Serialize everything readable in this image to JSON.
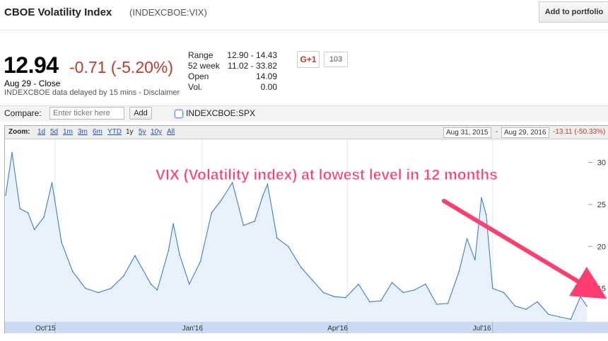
{
  "header": {
    "title": "CBOE Volatility Index",
    "ticker": "(INDEXCBOE:VIX)",
    "add_portfolio": "Add to portfolio"
  },
  "quote": {
    "price": "12.94",
    "change": "-0.71 (-5.20%)",
    "close_label": "Aug 29 - Close",
    "delay_note": "INDEXCBOE data delayed by 15 mins - Disclaimer",
    "stats": [
      {
        "label": "Range",
        "value": "12.90 - 14.43"
      },
      {
        "label": "52 week",
        "value": "11.02 - 33.82"
      },
      {
        "label": "Open",
        "value": "14.09"
      },
      {
        "label": "Vol.",
        "value": "0.00"
      }
    ]
  },
  "social": {
    "gplus": "G+1",
    "count": "103"
  },
  "compare": {
    "label": "Compare:",
    "placeholder": "Enter ticker here",
    "add": "Add",
    "spx_label": "INDEXCBOE:SPX"
  },
  "zoom": {
    "label": "Zoom:",
    "options": [
      "1d",
      "5d",
      "1m",
      "3m",
      "6m",
      "YTD",
      "1y",
      "5y",
      "10y",
      "All"
    ],
    "active": "1y",
    "start_date": "Aug 31, 2015",
    "end_date": "Aug 29, 2016",
    "separator": "-",
    "range_change": "-13.11 (-50.33%)"
  },
  "annotation": {
    "text": "VIX (Volatility index) at lowest level in 12 months",
    "color": "#ff3d71"
  },
  "colors": {
    "line": "#3a7fc9",
    "fill": "#e8f1fa",
    "negative": "#c0392b",
    "timeline": "#c9daf2"
  },
  "chart_data": {
    "type": "area",
    "title": "",
    "xlabel": "",
    "ylabel": "",
    "x": [
      "2015-08-31",
      "2015-09-04",
      "2015-09-09",
      "2015-09-14",
      "2015-09-18",
      "2015-09-24",
      "2015-09-29",
      "2015-10-05",
      "2015-10-12",
      "2015-10-20",
      "2015-10-28",
      "2015-11-05",
      "2015-11-13",
      "2015-11-20",
      "2015-11-30",
      "2015-12-04",
      "2015-12-11",
      "2015-12-14",
      "2015-12-18",
      "2015-12-24",
      "2015-12-31",
      "2016-01-07",
      "2016-01-13",
      "2016-01-20",
      "2016-01-27",
      "2016-02-03",
      "2016-02-08",
      "2016-02-11",
      "2016-02-17",
      "2016-02-24",
      "2016-03-03",
      "2016-03-10",
      "2016-03-17",
      "2016-03-24",
      "2016-03-31",
      "2016-04-08",
      "2016-04-15",
      "2016-04-22",
      "2016-04-29",
      "2016-05-06",
      "2016-05-13",
      "2016-05-20",
      "2016-05-27",
      "2016-06-03",
      "2016-06-10",
      "2016-06-15",
      "2016-06-20",
      "2016-06-24",
      "2016-06-27",
      "2016-07-01",
      "2016-07-08",
      "2016-07-15",
      "2016-07-22",
      "2016-07-29",
      "2016-08-05",
      "2016-08-12",
      "2016-08-19",
      "2016-08-25",
      "2016-08-29"
    ],
    "y": [
      26.1,
      31.2,
      24.5,
      24.0,
      22.0,
      23.5,
      27.6,
      20.5,
      17.0,
      15.0,
      14.5,
      15.0,
      16.5,
      18.9,
      15.5,
      14.8,
      19.5,
      22.7,
      19.0,
      15.5,
      18.2,
      24.0,
      25.5,
      27.6,
      22.5,
      23.0,
      26.0,
      27.4,
      21.0,
      20.0,
      17.5,
      16.0,
      14.5,
      14.0,
      13.9,
      15.5,
      13.4,
      13.5,
      15.7,
      14.5,
      14.8,
      15.5,
      13.1,
      13.2,
      17.0,
      20.9,
      18.4,
      25.8,
      23.8,
      15.0,
      14.5,
      12.9,
      12.5,
      13.4,
      11.9,
      11.6,
      11.3,
      14.0,
      12.9
    ],
    "x_ticks": [
      "Oct'15",
      "Jan'16",
      "Apr'16",
      "Jul'16"
    ],
    "y_ticks": [
      15,
      20,
      25,
      30
    ],
    "ylim": [
      11,
      32.5
    ],
    "grid": false,
    "legend": "none"
  }
}
